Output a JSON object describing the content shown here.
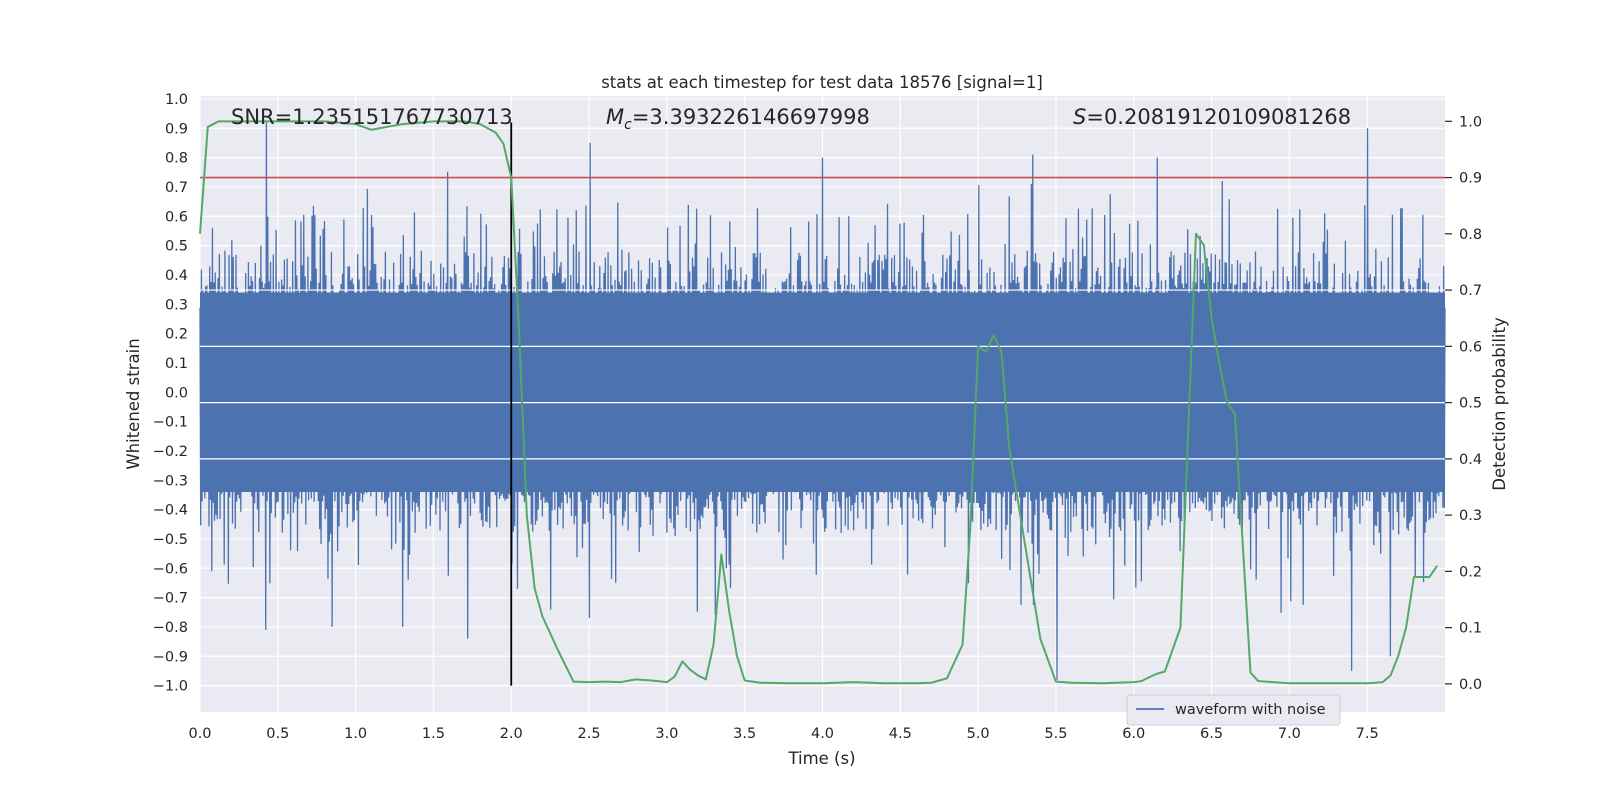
{
  "chart_data": {
    "type": "line",
    "title": "stats at each timestep for test data 18576 [signal=1]",
    "xlabel": "Time (s)",
    "ylabel": "Whitened strain",
    "y2label": "Detection probability",
    "xlim": [
      0,
      8
    ],
    "ylim": [
      -1.09,
      1.01
    ],
    "y2lim": [
      -0.05,
      1.045
    ],
    "x_ticks": [
      0.0,
      0.5,
      1.0,
      1.5,
      2.0,
      2.5,
      3.0,
      3.5,
      4.0,
      4.5,
      5.0,
      5.5,
      6.0,
      6.5,
      7.0,
      7.5
    ],
    "x_tick_labels": [
      "0.0",
      "0.5",
      "1.0",
      "1.5",
      "2.0",
      "2.5",
      "3.0",
      "3.5",
      "4.0",
      "4.5",
      "5.0",
      "5.5",
      "6.0",
      "6.5",
      "7.0",
      "7.5"
    ],
    "y_ticks": [
      1.0,
      0.9,
      0.8,
      0.7,
      0.6,
      0.5,
      0.4,
      0.3,
      0.2,
      0.1,
      0.0,
      -0.1,
      -0.2,
      -0.3,
      -0.4,
      -0.5,
      -0.6,
      -0.7,
      -0.8,
      -0.9,
      -1.0
    ],
    "y_tick_labels": [
      "1.0",
      "0.9",
      "0.8",
      "0.7",
      "0.6",
      "0.5",
      "0.4",
      "0.3",
      "0.2",
      "0.1",
      "0.0",
      "−0.1",
      "−0.2",
      "−0.3",
      "−0.4",
      "−0.5",
      "−0.6",
      "−0.7",
      "−0.8",
      "−0.9",
      "−1.0"
    ],
    "y2_ticks": [
      1.0,
      0.9,
      0.8,
      0.7,
      0.6,
      0.5,
      0.4,
      0.3,
      0.2,
      0.1,
      0.0
    ],
    "y2_tick_labels": [
      "1.0",
      "0.9",
      "0.8",
      "0.7",
      "0.6",
      "0.5",
      "0.4",
      "0.3",
      "0.2",
      "0.1",
      "0.0"
    ],
    "threshold": {
      "axis": "right",
      "value": 0.9,
      "color": "#c44e52"
    },
    "vline": {
      "x": 2.0,
      "y_from": -1.0,
      "y_to": 0.92,
      "color": "#000000"
    },
    "waveform": {
      "name": "waveform with noise",
      "color": "#4c72b0",
      "sampling": "random noise trace, |amplitude| mostly ≤ 0.45, spikes up to ~0.92",
      "spikes": [
        [
          0.42,
          0.92
        ],
        [
          2.5,
          0.85
        ],
        [
          4.0,
          0.8
        ],
        [
          5.35,
          0.81
        ],
        [
          6.15,
          0.8
        ],
        [
          7.5,
          0.9
        ],
        [
          0.42,
          -0.81
        ],
        [
          0.85,
          -0.8
        ],
        [
          1.3,
          -0.8
        ],
        [
          1.72,
          -0.84
        ],
        [
          2.5,
          -0.77
        ],
        [
          5.5,
          -0.98
        ],
        [
          7.4,
          -0.95
        ],
        [
          7.65,
          -0.9
        ]
      ]
    },
    "probability": {
      "name": "detection probability",
      "color": "#55a868",
      "x": [
        0.0,
        0.05,
        0.12,
        0.2,
        0.4,
        0.6,
        0.8,
        1.0,
        1.05,
        1.1,
        1.2,
        1.3,
        1.5,
        1.7,
        1.8,
        1.9,
        1.95,
        2.0,
        2.05,
        2.1,
        2.15,
        2.2,
        2.3,
        2.4,
        2.5,
        2.6,
        2.7,
        2.8,
        2.9,
        3.0,
        3.05,
        3.1,
        3.15,
        3.2,
        3.25,
        3.3,
        3.35,
        3.4,
        3.45,
        3.5,
        3.6,
        3.8,
        4.0,
        4.2,
        4.4,
        4.6,
        4.7,
        4.8,
        4.9,
        4.95,
        5.0,
        5.05,
        5.1,
        5.15,
        5.2,
        5.3,
        5.4,
        5.5,
        5.6,
        5.8,
        6.0,
        6.05,
        6.1,
        6.15,
        6.2,
        6.3,
        6.35,
        6.4,
        6.45,
        6.5,
        6.55,
        6.6,
        6.65,
        6.7,
        6.75,
        6.8,
        7.0,
        7.2,
        7.4,
        7.5,
        7.6,
        7.65,
        7.7,
        7.75,
        7.8,
        7.9,
        7.95
      ],
      "y": [
        0.8,
        0.99,
        1.0,
        1.0,
        1.0,
        1.0,
        1.0,
        0.995,
        0.99,
        0.985,
        0.99,
        0.995,
        1.0,
        1.0,
        0.995,
        0.98,
        0.96,
        0.9,
        0.63,
        0.3,
        0.17,
        0.12,
        0.06,
        0.004,
        0.003,
        0.004,
        0.003,
        0.008,
        0.006,
        0.003,
        0.013,
        0.04,
        0.025,
        0.015,
        0.008,
        0.07,
        0.23,
        0.13,
        0.05,
        0.006,
        0.002,
        0.001,
        0.001,
        0.003,
        0.001,
        0.001,
        0.002,
        0.01,
        0.07,
        0.28,
        0.6,
        0.59,
        0.62,
        0.59,
        0.42,
        0.25,
        0.08,
        0.004,
        0.002,
        0.001,
        0.003,
        0.005,
        0.012,
        0.018,
        0.022,
        0.1,
        0.45,
        0.8,
        0.78,
        0.65,
        0.57,
        0.5,
        0.48,
        0.25,
        0.02,
        0.005,
        0.001,
        0.001,
        0.001,
        0.001,
        0.003,
        0.015,
        0.05,
        0.1,
        0.19,
        0.19,
        0.21
      ]
    },
    "annotations": [
      {
        "text": "SNR=1.235151767730713"
      },
      {
        "prefix": "M",
        "sub": "c",
        "text": "=3.393226146697998"
      },
      {
        "prefix": "S",
        "text": "=0.20819120109081268"
      }
    ],
    "legend": {
      "label": "waveform with noise",
      "location": "lower-right"
    }
  }
}
